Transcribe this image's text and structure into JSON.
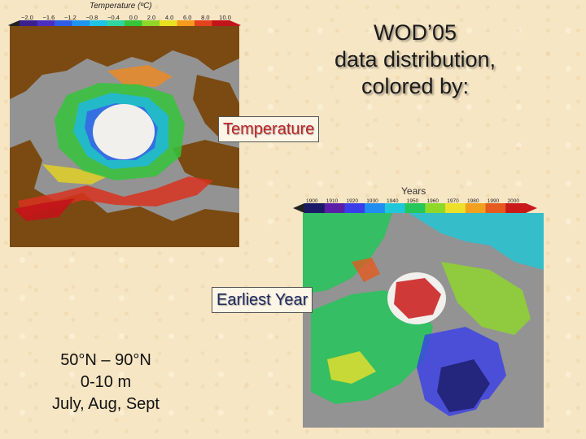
{
  "temp_colorbar": {
    "title": "Temperature (ºC)",
    "ticks": [
      "−2.0",
      "−1.6",
      "−1.2",
      "−0.8",
      "−0.4",
      "0.0",
      "2.0",
      "4.0",
      "6.0",
      "8.0",
      "10.0"
    ],
    "colors": [
      "#3a1f8f",
      "#4b2fc0",
      "#2f5ee8",
      "#1f95f0",
      "#1fc3e6",
      "#2fd6a0",
      "#35c43a",
      "#8fd82a",
      "#e8e020",
      "#f59a1f",
      "#e4411f",
      "#c2141a"
    ]
  },
  "year_colorbar": {
    "title": "Years",
    "ticks": [
      "1900",
      "1910",
      "1920",
      "1930",
      "1940",
      "1950",
      "1960",
      "1970",
      "1980",
      "1990",
      "2000"
    ],
    "colors": [
      "#1a1a66",
      "#5a1fa6",
      "#3a3ee8",
      "#1f8ef0",
      "#1fc8d8",
      "#25c65a",
      "#8ed82a",
      "#ece02a",
      "#f2a01f",
      "#e45a1f",
      "#c91a1a"
    ]
  },
  "title": {
    "line1": "WOD’05",
    "line2": "data distribution,",
    "line3": "colored by:"
  },
  "labels": {
    "temperature": "Temperature",
    "earliest_year": "Earliest Year"
  },
  "info": {
    "line1": "50°N – 90°N",
    "line2": "0-10 m",
    "line3": "July, Aug, Sept"
  },
  "map_colors": {
    "land": "#7a4a12",
    "ocean_gray": "#939393",
    "ice_white": "#f2f0ec"
  }
}
